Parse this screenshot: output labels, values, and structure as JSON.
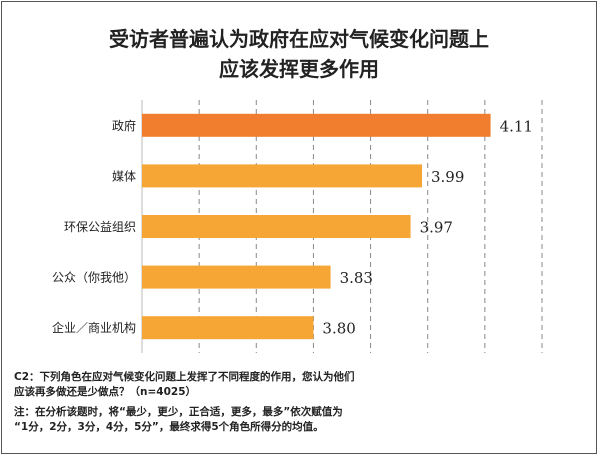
{
  "title": {
    "line1": "受访者普遍认为政府在应对气候变化问题上",
    "line2": "应该发挥更多作用"
  },
  "footnotes": {
    "question_line1": "C2：下列角色在应对气候变化问题上发挥了不同程度的作用，您认为他们",
    "question_line2": "应该再多做还是少做点？（n=4025）",
    "note_line1": "注：在分析该题时，将“最少，更少，正合适，更多，最多”依次赋值为",
    "note_line2": "“1分，2分，3分，4分，5分”，最终求得5个角色所得分的均值。"
  },
  "chart_data": {
    "type": "bar",
    "orientation": "horizontal",
    "categories": [
      "政府",
      "媒体",
      "环保公益组织",
      "公众（你我他）",
      "企业／商业机构"
    ],
    "values": [
      4.11,
      3.99,
      3.97,
      3.83,
      3.8
    ],
    "value_labels": [
      "4.11",
      "3.99",
      "3.97",
      "3.83",
      "3.80"
    ],
    "xlim": [
      3.5,
      4.2
    ],
    "grid": "vertical dashed",
    "colors": {
      "highlight": "#F07E2E",
      "bar": "#F5A634",
      "grid": "#888888"
    }
  }
}
